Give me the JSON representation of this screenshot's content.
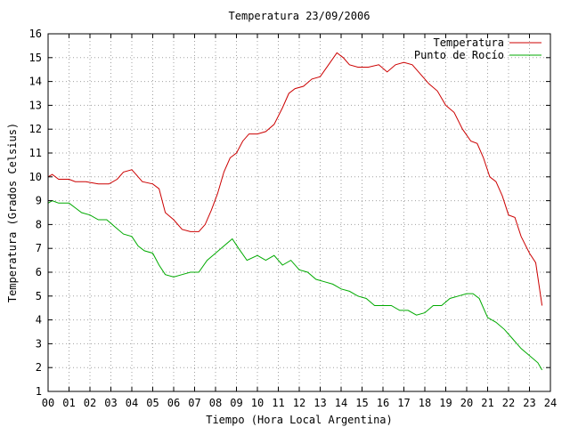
{
  "chart_data": {
    "type": "line",
    "title": "Temperatura 23/09/2006",
    "xlabel": "Tiempo (Hora Local Argentina)",
    "ylabel": "Temperatura (Grados Celsius)",
    "xlim": [
      0,
      24
    ],
    "ylim": [
      1,
      16
    ],
    "x_tick_labels": [
      "00",
      "01",
      "02",
      "03",
      "04",
      "05",
      "06",
      "07",
      "08",
      "09",
      "10",
      "11",
      "12",
      "13",
      "14",
      "15",
      "16",
      "17",
      "18",
      "19",
      "20",
      "21",
      "22",
      "23",
      "24"
    ],
    "y_tick_labels": [
      "1",
      "2",
      "3",
      "4",
      "5",
      "6",
      "7",
      "8",
      "9",
      "10",
      "11",
      "12",
      "13",
      "14",
      "15",
      "16"
    ],
    "grid": true,
    "legend_position": "top-right",
    "series": [
      {
        "name": "Temperatura",
        "color": "#cc0000",
        "x": [
          0,
          0.2,
          0.5,
          1.0,
          1.3,
          1.8,
          2.4,
          2.9,
          3.3,
          3.6,
          4.0,
          4.2,
          4.5,
          5.0,
          5.3,
          5.6,
          6.0,
          6.4,
          6.8,
          7.2,
          7.5,
          7.8,
          8.1,
          8.4,
          8.7,
          9.0,
          9.3,
          9.6,
          10.0,
          10.4,
          10.8,
          11.2,
          11.5,
          11.8,
          12.2,
          12.6,
          13.0,
          13.4,
          13.8,
          14.1,
          14.4,
          14.8,
          15.3,
          15.8,
          16.2,
          16.6,
          17.0,
          17.4,
          17.8,
          18.2,
          18.6,
          19.0,
          19.4,
          19.8,
          20.2,
          20.5,
          20.8,
          21.1,
          21.4,
          21.7,
          22.0,
          22.3,
          22.6,
          23.0,
          23.3,
          23.6
        ],
        "values": [
          10.0,
          10.1,
          9.9,
          9.9,
          9.8,
          9.8,
          9.7,
          9.7,
          9.9,
          10.2,
          10.3,
          10.1,
          9.8,
          9.7,
          9.5,
          8.5,
          8.2,
          7.8,
          7.7,
          7.7,
          8.0,
          8.6,
          9.3,
          10.2,
          10.8,
          11.0,
          11.5,
          11.8,
          11.8,
          11.9,
          12.2,
          12.9,
          13.5,
          13.7,
          13.8,
          14.1,
          14.2,
          14.7,
          15.2,
          15.0,
          14.7,
          14.6,
          14.6,
          14.7,
          14.4,
          14.7,
          14.8,
          14.7,
          14.3,
          13.9,
          13.6,
          13.0,
          12.7,
          12.0,
          11.5,
          11.4,
          10.8,
          10.0,
          9.8,
          9.2,
          8.4,
          8.3,
          7.5,
          6.8,
          6.4,
          4.6
        ]
      },
      {
        "name": "Punto de Rocío",
        "color": "#00aa00",
        "x": [
          0,
          0.2,
          0.5,
          1.0,
          1.3,
          1.6,
          2.0,
          2.4,
          2.8,
          3.2,
          3.6,
          4.0,
          4.3,
          4.6,
          5.0,
          5.3,
          5.6,
          6.0,
          6.4,
          6.8,
          7.2,
          7.6,
          8.0,
          8.4,
          8.8,
          9.1,
          9.5,
          10.0,
          10.4,
          10.8,
          11.2,
          11.6,
          12.0,
          12.4,
          12.8,
          13.2,
          13.6,
          14.0,
          14.4,
          14.8,
          15.2,
          15.6,
          16.0,
          16.4,
          16.8,
          17.2,
          17.6,
          18.0,
          18.4,
          18.8,
          19.2,
          19.6,
          20.0,
          20.3,
          20.6,
          21.0,
          21.4,
          21.8,
          22.2,
          22.6,
          23.0,
          23.4,
          23.6
        ],
        "values": [
          8.9,
          9.0,
          8.9,
          8.9,
          8.7,
          8.5,
          8.4,
          8.2,
          8.2,
          7.9,
          7.6,
          7.5,
          7.1,
          6.9,
          6.8,
          6.3,
          5.9,
          5.8,
          5.9,
          6.0,
          6.0,
          6.5,
          6.8,
          7.1,
          7.4,
          7.0,
          6.5,
          6.7,
          6.5,
          6.7,
          6.3,
          6.5,
          6.1,
          6.0,
          5.7,
          5.6,
          5.5,
          5.3,
          5.2,
          5.0,
          4.9,
          4.6,
          4.6,
          4.6,
          4.4,
          4.4,
          4.2,
          4.3,
          4.6,
          4.6,
          4.9,
          5.0,
          5.1,
          5.1,
          4.9,
          4.1,
          3.9,
          3.6,
          3.2,
          2.8,
          2.5,
          2.2,
          1.9
        ]
      }
    ]
  }
}
